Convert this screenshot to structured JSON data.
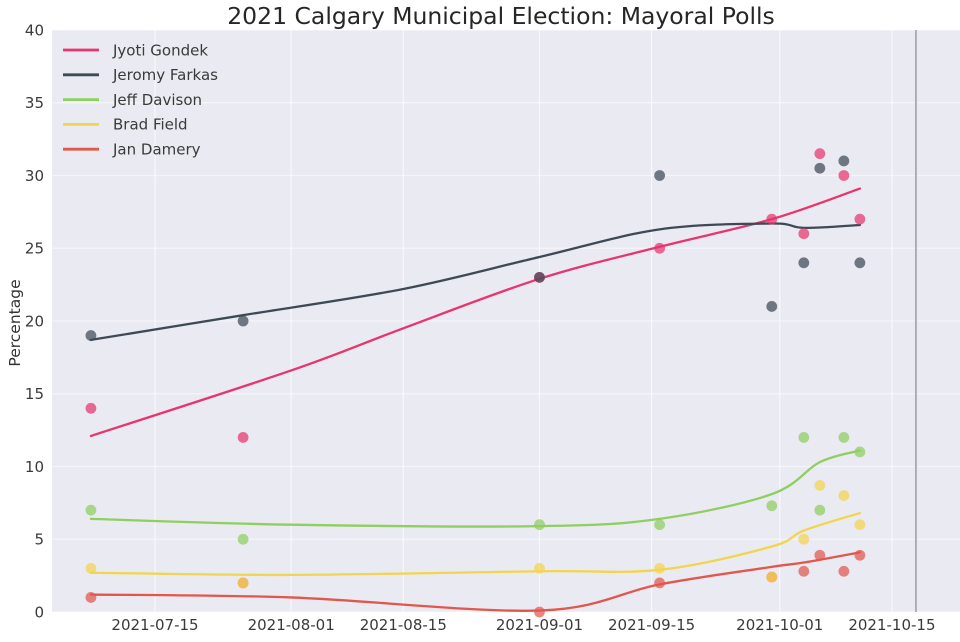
{
  "chart_data": {
    "type": "scatter",
    "title": "2021 Calgary Municipal Election: Mayoral Polls",
    "xlabel": "",
    "ylabel": "Percentage",
    "ylim": [
      0,
      40
    ],
    "yticks": [
      0,
      5,
      10,
      15,
      20,
      25,
      30,
      35,
      40
    ],
    "xticks": [
      "2021-07-15",
      "2021-08-01",
      "2021-08-15",
      "2021-09-01",
      "2021-09-15",
      "2021-10-01",
      "2021-10-15"
    ],
    "grid": true,
    "legend_position": "upper left",
    "plot_background": "#eaeaf2",
    "vline_date": "2021-10-18",
    "series": [
      {
        "name": "Jyoti Gondek",
        "color": "#e8356d",
        "points": [
          [
            "2021-07-07",
            14
          ],
          [
            "2021-07-26",
            12
          ],
          [
            "2021-09-01",
            23
          ],
          [
            "2021-09-16",
            25
          ],
          [
            "2021-09-30",
            27
          ],
          [
            "2021-10-04",
            26
          ],
          [
            "2021-10-06",
            31.5
          ],
          [
            "2021-10-09",
            30
          ],
          [
            "2021-10-11",
            27
          ]
        ],
        "trend": [
          [
            "2021-07-07",
            12.1
          ],
          [
            "2021-08-01",
            16.6
          ],
          [
            "2021-08-15",
            19.5
          ],
          [
            "2021-09-01",
            22.9
          ],
          [
            "2021-09-16",
            25.1
          ],
          [
            "2021-09-30",
            27.0
          ],
          [
            "2021-10-11",
            29.1
          ]
        ]
      },
      {
        "name": "Jeromy Farkas",
        "color": "#3d4a54",
        "points": [
          [
            "2021-07-07",
            19
          ],
          [
            "2021-07-26",
            20
          ],
          [
            "2021-09-01",
            23
          ],
          [
            "2021-09-16",
            30
          ],
          [
            "2021-09-30",
            21
          ],
          [
            "2021-10-04",
            24
          ],
          [
            "2021-10-06",
            30.5
          ],
          [
            "2021-10-09",
            31
          ],
          [
            "2021-10-11",
            24
          ]
        ],
        "trend": [
          [
            "2021-07-07",
            18.7
          ],
          [
            "2021-07-26",
            20.4
          ],
          [
            "2021-08-15",
            22.2
          ],
          [
            "2021-09-01",
            24.4
          ],
          [
            "2021-09-16",
            26.3
          ],
          [
            "2021-09-30",
            26.7
          ],
          [
            "2021-10-04",
            26.4
          ],
          [
            "2021-10-11",
            26.6
          ]
        ]
      },
      {
        "name": "Jeff Davison",
        "color": "#8ecf60",
        "points": [
          [
            "2021-07-07",
            7
          ],
          [
            "2021-07-26",
            5
          ],
          [
            "2021-09-01",
            6
          ],
          [
            "2021-09-16",
            6
          ],
          [
            "2021-09-30",
            7.3
          ],
          [
            "2021-10-04",
            12
          ],
          [
            "2021-10-06",
            7
          ],
          [
            "2021-10-09",
            12
          ],
          [
            "2021-10-11",
            11
          ]
        ],
        "trend": [
          [
            "2021-07-07",
            6.4
          ],
          [
            "2021-08-01",
            6.0
          ],
          [
            "2021-09-01",
            5.9
          ],
          [
            "2021-09-16",
            6.4
          ],
          [
            "2021-09-30",
            8.1
          ],
          [
            "2021-10-06",
            10.3
          ],
          [
            "2021-10-11",
            11.1
          ]
        ]
      },
      {
        "name": "Brad Field",
        "color": "#f2d44d",
        "points": [
          [
            "2021-07-07",
            3
          ],
          [
            "2021-07-26",
            2
          ],
          [
            "2021-09-01",
            3
          ],
          [
            "2021-09-16",
            3
          ],
          [
            "2021-09-30",
            2.4
          ],
          [
            "2021-10-04",
            5
          ],
          [
            "2021-10-06",
            8.7
          ],
          [
            "2021-10-09",
            8
          ],
          [
            "2021-10-11",
            6
          ]
        ],
        "trend": [
          [
            "2021-07-07",
            2.7
          ],
          [
            "2021-08-01",
            2.55
          ],
          [
            "2021-09-01",
            2.8
          ],
          [
            "2021-09-16",
            2.9
          ],
          [
            "2021-09-30",
            4.5
          ],
          [
            "2021-10-04",
            5.6
          ],
          [
            "2021-10-11",
            6.8
          ]
        ]
      },
      {
        "name": "Jan Damery",
        "color": "#e2574d",
        "points": [
          [
            "2021-07-07",
            1
          ],
          [
            "2021-07-26",
            2
          ],
          [
            "2021-09-01",
            0
          ],
          [
            "2021-09-16",
            2
          ],
          [
            "2021-09-30",
            2.4
          ],
          [
            "2021-10-04",
            2.8
          ],
          [
            "2021-10-06",
            3.9
          ],
          [
            "2021-10-09",
            2.8
          ],
          [
            "2021-10-11",
            3.9
          ]
        ],
        "trend": [
          [
            "2021-07-07",
            1.2
          ],
          [
            "2021-08-01",
            1.0
          ],
          [
            "2021-09-01",
            0.1
          ],
          [
            "2021-09-16",
            1.9
          ],
          [
            "2021-09-30",
            3.1
          ],
          [
            "2021-10-04",
            3.4
          ],
          [
            "2021-10-11",
            4.1
          ]
        ]
      }
    ]
  }
}
